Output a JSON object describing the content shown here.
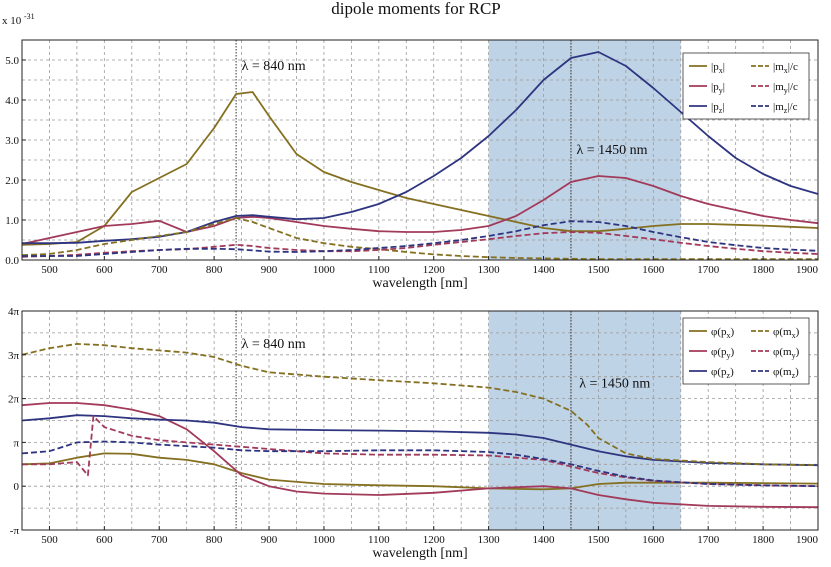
{
  "title": "dipole moments for RCP",
  "colors": {
    "x": "#847020",
    "y": "#a23a5a",
    "z": "#2e3580",
    "band": "#aac4dd"
  },
  "chart_data": [
    {
      "type": "line",
      "xlabel": "wavelength [nm]",
      "xlim": [
        450,
        1900
      ],
      "ylim": [
        0,
        5.5
      ],
      "scale_label": "x 10",
      "scale_exp": "-31",
      "x_ticks": [
        500,
        600,
        700,
        800,
        900,
        1000,
        1100,
        1200,
        1300,
        1400,
        1500,
        1600,
        1700,
        1800,
        1900
      ],
      "y_ticks": [
        {
          "v": 0,
          "t": "0.0"
        },
        {
          "v": 1,
          "t": "1.0"
        },
        {
          "v": 2,
          "t": "2.0"
        },
        {
          "v": 3,
          "t": "3.0"
        },
        {
          "v": 4,
          "t": "4.0"
        },
        {
          "v": 5,
          "t": "5.0"
        }
      ],
      "shaded_region": [
        1300,
        1650
      ],
      "vlines": [
        840,
        1450
      ],
      "annotations": [
        {
          "x": 850,
          "y": 4.75,
          "text": "λ = 840 nm"
        },
        {
          "x": 1460,
          "y": 2.65,
          "text": "λ = 1450 nm"
        }
      ],
      "legend": [
        {
          "label": "|p",
          "sub": "x",
          "suffix": "|",
          "color": "x",
          "dash": false
        },
        {
          "label": "|m",
          "sub": "x",
          "suffix": "|/c",
          "color": "x",
          "dash": true
        },
        {
          "label": "|p",
          "sub": "y",
          "suffix": "|",
          "color": "y",
          "dash": false
        },
        {
          "label": "|m",
          "sub": "y",
          "suffix": "|/c",
          "color": "y",
          "dash": true
        },
        {
          "label": "|p",
          "sub": "z",
          "suffix": "|",
          "color": "z",
          "dash": false
        },
        {
          "label": "|m",
          "sub": "z",
          "suffix": "|/c",
          "color": "z",
          "dash": true
        }
      ],
      "x": [
        450,
        500,
        550,
        600,
        650,
        700,
        750,
        800,
        840,
        870,
        900,
        950,
        1000,
        1050,
        1100,
        1150,
        1200,
        1250,
        1300,
        1350,
        1400,
        1450,
        1500,
        1550,
        1600,
        1650,
        1700,
        1750,
        1800,
        1850,
        1900
      ],
      "series": [
        {
          "name": "|px|",
          "color": "x",
          "dash": false,
          "values": [
            0.38,
            0.4,
            0.45,
            0.85,
            1.7,
            2.05,
            2.4,
            3.3,
            4.15,
            4.2,
            3.6,
            2.65,
            2.2,
            1.95,
            1.75,
            1.55,
            1.4,
            1.25,
            1.1,
            0.95,
            0.8,
            0.72,
            0.72,
            0.78,
            0.85,
            0.9,
            0.9,
            0.88,
            0.86,
            0.83,
            0.8
          ]
        },
        {
          "name": "|py|",
          "color": "y",
          "dash": false,
          "values": [
            0.4,
            0.55,
            0.7,
            0.85,
            0.9,
            0.98,
            0.7,
            0.85,
            1.05,
            1.08,
            1.05,
            0.95,
            0.85,
            0.78,
            0.72,
            0.7,
            0.7,
            0.75,
            0.85,
            1.1,
            1.5,
            1.95,
            2.1,
            2.05,
            1.85,
            1.6,
            1.4,
            1.25,
            1.1,
            1.0,
            0.92
          ]
        },
        {
          "name": "|pz|",
          "color": "z",
          "dash": false,
          "values": [
            0.42,
            0.42,
            0.43,
            0.48,
            0.52,
            0.58,
            0.7,
            0.95,
            1.1,
            1.12,
            1.08,
            1.02,
            1.05,
            1.2,
            1.4,
            1.7,
            2.1,
            2.55,
            3.1,
            3.75,
            4.5,
            5.05,
            5.2,
            4.85,
            4.3,
            3.7,
            3.1,
            2.55,
            2.15,
            1.85,
            1.65
          ]
        },
        {
          "name": "|mx|/c",
          "color": "x",
          "dash": true,
          "values": [
            0.12,
            0.15,
            0.25,
            0.4,
            0.5,
            0.6,
            0.7,
            0.9,
            1.05,
            0.95,
            0.8,
            0.55,
            0.42,
            0.33,
            0.27,
            0.2,
            0.14,
            0.1,
            0.07,
            0.05,
            0.04,
            0.03,
            0.02,
            0.02,
            0.02,
            0.02,
            0.02,
            0.02,
            0.02,
            0.02,
            0.02
          ]
        },
        {
          "name": "|my|/c",
          "color": "y",
          "dash": true,
          "values": [
            0.08,
            0.1,
            0.13,
            0.18,
            0.22,
            0.25,
            0.27,
            0.33,
            0.38,
            0.35,
            0.3,
            0.25,
            0.22,
            0.22,
            0.25,
            0.3,
            0.38,
            0.45,
            0.52,
            0.6,
            0.67,
            0.7,
            0.68,
            0.6,
            0.52,
            0.43,
            0.35,
            0.28,
            0.22,
            0.18,
            0.15
          ]
        },
        {
          "name": "|mz|/c",
          "color": "z",
          "dash": true,
          "values": [
            0.1,
            0.1,
            0.1,
            0.15,
            0.2,
            0.25,
            0.28,
            0.28,
            0.27,
            0.24,
            0.21,
            0.2,
            0.22,
            0.25,
            0.3,
            0.35,
            0.42,
            0.5,
            0.6,
            0.72,
            0.87,
            0.97,
            0.95,
            0.85,
            0.7,
            0.57,
            0.45,
            0.37,
            0.3,
            0.26,
            0.23
          ]
        }
      ]
    },
    {
      "type": "line",
      "xlabel": "wavelength [nm]",
      "xlim": [
        450,
        1900
      ],
      "ylim": [
        -1,
        4
      ],
      "x_ticks": [
        500,
        600,
        700,
        800,
        900,
        1000,
        1100,
        1200,
        1300,
        1400,
        1500,
        1600,
        1700,
        1800,
        1900
      ],
      "y_ticks": [
        {
          "v": 4,
          "t": "4π"
        },
        {
          "v": 3,
          "t": "3π"
        },
        {
          "v": 2,
          "t": "2π"
        },
        {
          "v": 1,
          "t": "π"
        },
        {
          "v": 0,
          "t": "0"
        },
        {
          "v": -1,
          "t": "-π"
        }
      ],
      "shaded_region": [
        1300,
        1650
      ],
      "vlines": [
        840,
        1450
      ],
      "annotations": [
        {
          "x": 850,
          "y": 3.15,
          "text": "λ = 840 nm"
        },
        {
          "x": 1465,
          "y": 2.25,
          "text": "λ = 1450 nm"
        }
      ],
      "legend": [
        {
          "label": "φ(p",
          "sub": "x",
          "suffix": ")",
          "color": "x",
          "dash": false
        },
        {
          "label": "φ(m",
          "sub": "x",
          "suffix": ")",
          "color": "x",
          "dash": true
        },
        {
          "label": "φ(p",
          "sub": "y",
          "suffix": ")",
          "color": "y",
          "dash": false
        },
        {
          "label": "φ(m",
          "sub": "y",
          "suffix": ")",
          "color": "y",
          "dash": true
        },
        {
          "label": "φ(p",
          "sub": "z",
          "suffix": ")",
          "color": "z",
          "dash": false
        },
        {
          "label": "φ(m",
          "sub": "z",
          "suffix": ")",
          "color": "z",
          "dash": true
        }
      ],
      "series": [
        {
          "name": "φ(px)",
          "color": "x",
          "dash": false,
          "x": [
            450,
            500,
            550,
            600,
            650,
            700,
            750,
            800,
            850,
            900,
            1000,
            1100,
            1200,
            1300,
            1400,
            1450,
            1500,
            1550,
            1600,
            1700,
            1800,
            1900
          ],
          "values": [
            0.5,
            0.52,
            0.65,
            0.75,
            0.74,
            0.65,
            0.6,
            0.5,
            0.3,
            0.15,
            0.05,
            0.02,
            0.0,
            -0.05,
            -0.07,
            -0.05,
            0.05,
            0.08,
            0.08,
            0.08,
            0.07,
            0.06
          ]
        },
        {
          "name": "φ(py)",
          "color": "y",
          "dash": false,
          "x": [
            450,
            500,
            550,
            600,
            650,
            700,
            750,
            800,
            850,
            900,
            950,
            1000,
            1100,
            1200,
            1300,
            1400,
            1450,
            1500,
            1550,
            1600,
            1700,
            1800,
            1900
          ],
          "values": [
            1.85,
            1.9,
            1.9,
            1.85,
            1.75,
            1.6,
            1.3,
            0.8,
            0.25,
            0.0,
            -0.12,
            -0.17,
            -0.2,
            -0.15,
            -0.05,
            0.0,
            -0.05,
            -0.2,
            -0.3,
            -0.38,
            -0.45,
            -0.47,
            -0.48
          ]
        },
        {
          "name": "φ(pz)",
          "color": "z",
          "dash": false,
          "x": [
            450,
            500,
            550,
            600,
            650,
            700,
            750,
            800,
            850,
            900,
            1000,
            1100,
            1200,
            1300,
            1350,
            1400,
            1450,
            1500,
            1550,
            1600,
            1700,
            1800,
            1900
          ],
          "values": [
            1.5,
            1.55,
            1.62,
            1.6,
            1.55,
            1.52,
            1.5,
            1.45,
            1.35,
            1.3,
            1.28,
            1.27,
            1.25,
            1.22,
            1.18,
            1.1,
            0.95,
            0.8,
            0.68,
            0.6,
            0.53,
            0.5,
            0.48
          ]
        },
        {
          "name": "φ(mx)",
          "color": "x",
          "dash": true,
          "x": [
            450,
            500,
            550,
            600,
            650,
            700,
            750,
            800,
            850,
            900,
            1000,
            1100,
            1200,
            1300,
            1350,
            1400,
            1450,
            1480,
            1500,
            1550,
            1600,
            1700,
            1800,
            1900
          ],
          "values": [
            3.0,
            3.15,
            3.25,
            3.22,
            3.15,
            3.1,
            3.05,
            2.95,
            2.75,
            2.6,
            2.5,
            2.42,
            2.35,
            2.25,
            2.15,
            2.0,
            1.72,
            1.4,
            1.1,
            0.75,
            0.62,
            0.55,
            0.5,
            0.48
          ]
        },
        {
          "name": "φ(my)",
          "color": "y",
          "dash": true,
          "x": [
            450,
            500,
            550,
            570,
            580,
            600,
            650,
            700,
            800,
            900,
            1000,
            1100,
            1200,
            1300,
            1400,
            1450,
            1500,
            1550,
            1600,
            1700,
            1800,
            1900
          ],
          "values": [
            0.5,
            0.5,
            0.55,
            0.25,
            1.6,
            1.35,
            1.15,
            1.05,
            0.95,
            0.85,
            0.75,
            0.72,
            0.72,
            0.7,
            0.6,
            0.45,
            0.3,
            0.2,
            0.12,
            0.05,
            0.02,
            0.0
          ]
        },
        {
          "name": "φ(mz)",
          "color": "z",
          "dash": true,
          "x": [
            450,
            500,
            550,
            600,
            650,
            700,
            800,
            850,
            900,
            1000,
            1100,
            1200,
            1300,
            1350,
            1400,
            1450,
            1500,
            1550,
            1600,
            1700,
            1800,
            1900
          ],
          "values": [
            0.75,
            0.8,
            1.0,
            1.02,
            1.0,
            0.95,
            0.88,
            0.82,
            0.8,
            0.8,
            0.82,
            0.82,
            0.78,
            0.72,
            0.62,
            0.5,
            0.35,
            0.22,
            0.13,
            0.05,
            0.02,
            0.0
          ]
        }
      ]
    }
  ]
}
